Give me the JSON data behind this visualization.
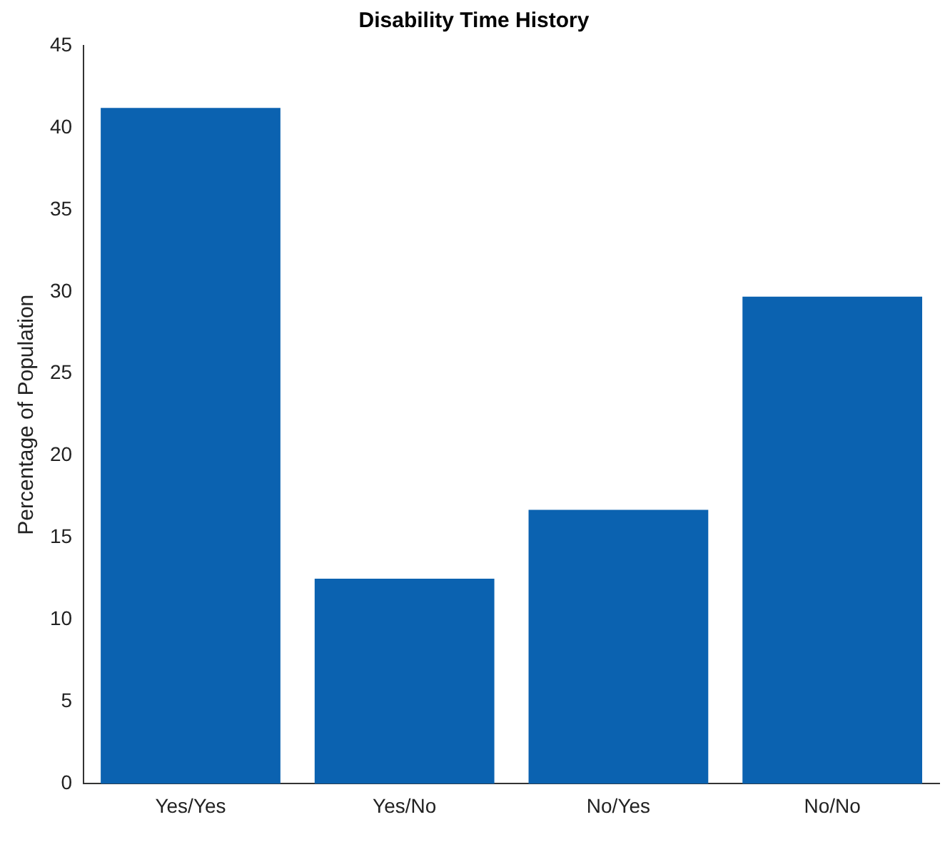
{
  "chart_data": {
    "type": "bar",
    "title": "Disability Time History",
    "ylabel": "Percentage of Population",
    "categories": [
      "Yes/Yes",
      "Yes/No",
      "No/Yes",
      "No/No"
    ],
    "values": [
      41.2,
      12.5,
      16.7,
      29.7
    ],
    "color": "#0b62b0",
    "ylim": [
      0,
      45
    ],
    "yticks": [
      0,
      5,
      10,
      15,
      20,
      25,
      30,
      35,
      40,
      45
    ],
    "grid": false
  }
}
